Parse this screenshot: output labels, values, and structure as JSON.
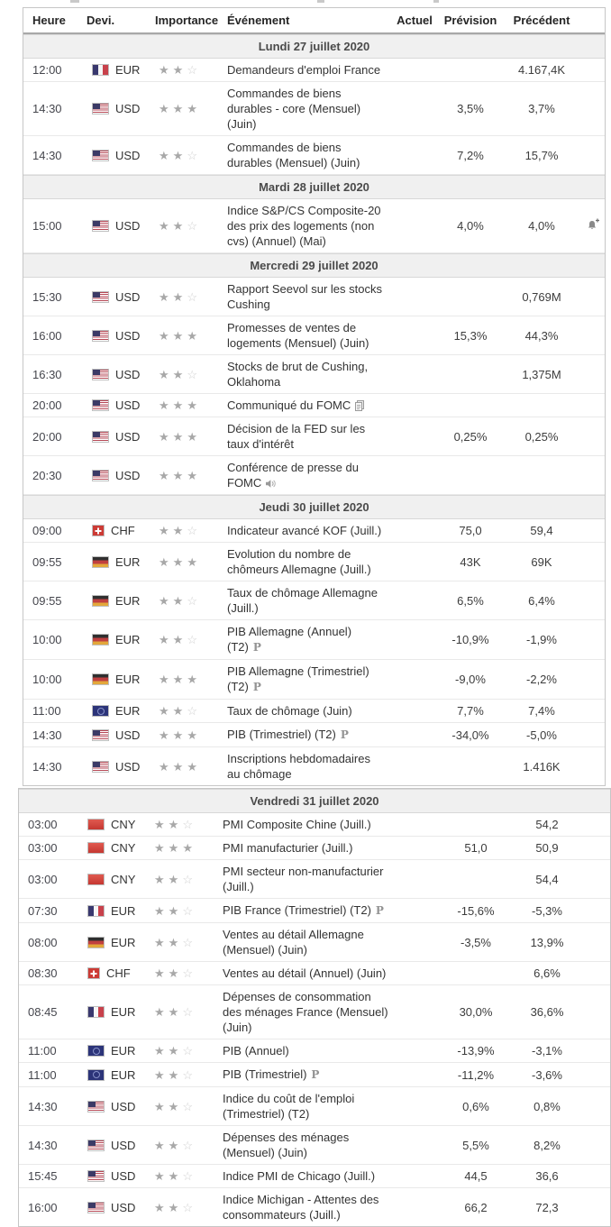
{
  "colors": {
    "accent_border": "#c6c6c6",
    "day_header_bg": "#f0f0f0",
    "star_on": "#a8a8a8",
    "star_off": "#cfcfcf",
    "text": "#333333"
  },
  "icons": {
    "alert": "bell-plus-icon",
    "report": "report-document-icon",
    "speaker": "speaker-icon",
    "preliminary": "preliminary-p-icon",
    "star": "star-icon"
  },
  "table": {
    "columns": {
      "heure": "Heure",
      "devi": "Devi.",
      "importance": "Importance",
      "evenement": "Événement",
      "actuel": "Actuel",
      "prevision": "Prévision",
      "precedent": "Précédent"
    },
    "days": [
      {
        "label": "Lundi 27 juillet 2020",
        "wide": false,
        "rows": [
          {
            "time": "12:00",
            "flag": "fr",
            "currency": "EUR",
            "importance": 2,
            "event": "Demandeurs d'emploi France",
            "actual": "",
            "forecast": "",
            "previous": "4.167,4K"
          },
          {
            "time": "14:30",
            "flag": "us",
            "currency": "USD",
            "importance": 3,
            "event": "Commandes de biens durables - core (Mensuel) (Juin)",
            "actual": "",
            "forecast": "3,5%",
            "previous": "3,7%"
          },
          {
            "time": "14:30",
            "flag": "us",
            "currency": "USD",
            "importance": 2,
            "event": "Commandes de biens durables (Mensuel) (Juin)",
            "actual": "",
            "forecast": "7,2%",
            "previous": "15,7%"
          }
        ]
      },
      {
        "label": "Mardi 28 juillet 2020",
        "wide": false,
        "rows": [
          {
            "time": "15:00",
            "flag": "us",
            "currency": "USD",
            "importance": 2,
            "event": "Indice S&P/CS Composite-20 des prix des logements (non cvs) (Annuel) (Mai)",
            "actual": "",
            "forecast": "4,0%",
            "previous": "4,0%",
            "alert": true
          }
        ]
      },
      {
        "label": "Mercredi 29 juillet 2020",
        "wide": false,
        "rows": [
          {
            "time": "15:30",
            "flag": "us",
            "currency": "USD",
            "importance": 2,
            "event": "Rapport Seevol sur les stocks Cushing",
            "actual": "",
            "forecast": "",
            "previous": "0,769M"
          },
          {
            "time": "16:00",
            "flag": "us",
            "currency": "USD",
            "importance": 3,
            "event": "Promesses de ventes de logements (Mensuel) (Juin)",
            "actual": "",
            "forecast": "15,3%",
            "previous": "44,3%"
          },
          {
            "time": "16:30",
            "flag": "us",
            "currency": "USD",
            "importance": 2,
            "event": "Stocks de brut de Cushing, Oklahoma",
            "actual": "",
            "forecast": "",
            "previous": "1,375M"
          },
          {
            "time": "20:00",
            "flag": "us",
            "currency": "USD",
            "importance": 3,
            "event": "Communiqué du FOMC",
            "icon": "report",
            "actual": "",
            "forecast": "",
            "previous": ""
          },
          {
            "time": "20:00",
            "flag": "us",
            "currency": "USD",
            "importance": 3,
            "event": "Décision de la FED sur les taux d'intérêt",
            "actual": "",
            "forecast": "0,25%",
            "previous": "0,25%"
          },
          {
            "time": "20:30",
            "flag": "us",
            "currency": "USD",
            "importance": 3,
            "event": "Conférence de presse du FOMC",
            "icon": "speaker",
            "actual": "",
            "forecast": "",
            "previous": ""
          }
        ]
      },
      {
        "label": "Jeudi 30 juillet 2020",
        "wide": false,
        "rows": [
          {
            "time": "09:00",
            "flag": "ch",
            "currency": "CHF",
            "importance": 2,
            "event": "Indicateur avancé KOF (Juill.)",
            "actual": "",
            "forecast": "75,0",
            "previous": "59,4"
          },
          {
            "time": "09:55",
            "flag": "de",
            "currency": "EUR",
            "importance": 3,
            "event": "Evolution du nombre de chômeurs Allemagne (Juill.)",
            "actual": "",
            "forecast": "43K",
            "previous": "69K"
          },
          {
            "time": "09:55",
            "flag": "de",
            "currency": "EUR",
            "importance": 2,
            "event": "Taux de chômage Allemagne (Juill.)",
            "actual": "",
            "forecast": "6,5%",
            "previous": "6,4%"
          },
          {
            "time": "10:00",
            "flag": "de",
            "currency": "EUR",
            "importance": 2,
            "event": "PIB Allemagne (Annuel) (T2)",
            "prelim": true,
            "actual": "",
            "forecast": "-10,9%",
            "previous": "-1,9%"
          },
          {
            "time": "10:00",
            "flag": "de",
            "currency": "EUR",
            "importance": 3,
            "event": "PIB Allemagne (Trimestriel) (T2)",
            "prelim": true,
            "actual": "",
            "forecast": "-9,0%",
            "previous": "-2,2%"
          },
          {
            "time": "11:00",
            "flag": "eu",
            "currency": "EUR",
            "importance": 2,
            "event": "Taux de chômage (Juin)",
            "actual": "",
            "forecast": "7,7%",
            "previous": "7,4%"
          },
          {
            "time": "14:30",
            "flag": "us",
            "currency": "USD",
            "importance": 3,
            "event": "PIB (Trimestriel) (T2)",
            "prelim": true,
            "actual": "",
            "forecast": "-34,0%",
            "previous": "-5,0%"
          },
          {
            "time": "14:30",
            "flag": "us",
            "currency": "USD",
            "importance": 3,
            "event": "Inscriptions hebdomadaires au chômage",
            "actual": "",
            "forecast": "",
            "previous": "1.416K"
          }
        ]
      },
      {
        "label": "Vendredi 31 juillet 2020",
        "wide": true,
        "rows": [
          {
            "time": "03:00",
            "flag": "cn",
            "currency": "CNY",
            "importance": 2,
            "event": "PMI Composite Chine (Juill.)",
            "actual": "",
            "forecast": "",
            "previous": "54,2"
          },
          {
            "time": "03:00",
            "flag": "cn",
            "currency": "CNY",
            "importance": 3,
            "event": "PMI manufacturier (Juill.)",
            "actual": "",
            "forecast": "51,0",
            "previous": "50,9"
          },
          {
            "time": "03:00",
            "flag": "cn",
            "currency": "CNY",
            "importance": 2,
            "event": "PMI secteur non-manufacturier (Juill.)",
            "actual": "",
            "forecast": "",
            "previous": "54,4"
          },
          {
            "time": "07:30",
            "flag": "fr",
            "currency": "EUR",
            "importance": 2,
            "event": "PIB France (Trimestriel) (T2)",
            "prelim": true,
            "actual": "",
            "forecast": "-15,6%",
            "previous": "-5,3%"
          },
          {
            "time": "08:00",
            "flag": "de",
            "currency": "EUR",
            "importance": 2,
            "event": "Ventes au détail Allemagne (Mensuel) (Juin)",
            "actual": "",
            "forecast": "-3,5%",
            "previous": "13,9%"
          },
          {
            "time": "08:30",
            "flag": "ch",
            "currency": "CHF",
            "importance": 2,
            "event": "Ventes au détail (Annuel) (Juin)",
            "actual": "",
            "forecast": "",
            "previous": "6,6%"
          },
          {
            "time": "08:45",
            "flag": "fr",
            "currency": "EUR",
            "importance": 2,
            "event": "Dépenses de consommation des ménages France (Mensuel) (Juin)",
            "actual": "",
            "forecast": "30,0%",
            "previous": "36,6%"
          },
          {
            "time": "11:00",
            "flag": "eu",
            "currency": "EUR",
            "importance": 2,
            "event": "PIB (Annuel)",
            "actual": "",
            "forecast": "-13,9%",
            "previous": "-3,1%"
          },
          {
            "time": "11:00",
            "flag": "eu",
            "currency": "EUR",
            "importance": 2,
            "event": "PIB (Trimestriel)",
            "prelim": true,
            "actual": "",
            "forecast": "-11,2%",
            "previous": "-3,6%"
          },
          {
            "time": "14:30",
            "flag": "us",
            "currency": "USD",
            "importance": 2,
            "event": "Indice du coût de l'emploi (Trimestriel) (T2)",
            "actual": "",
            "forecast": "0,6%",
            "previous": "0,8%"
          },
          {
            "time": "14:30",
            "flag": "us",
            "currency": "USD",
            "importance": 2,
            "event": "Dépenses des ménages (Mensuel) (Juin)",
            "actual": "",
            "forecast": "5,5%",
            "previous": "8,2%"
          },
          {
            "time": "15:45",
            "flag": "us",
            "currency": "USD",
            "importance": 2,
            "event": "Indice PMI de Chicago (Juill.)",
            "actual": "",
            "forecast": "44,5",
            "previous": "36,6"
          },
          {
            "time": "16:00",
            "flag": "us",
            "currency": "USD",
            "importance": 2,
            "event": "Indice Michigan - Attentes des consommateurs (Juill.)",
            "actual": "",
            "forecast": "66,2",
            "previous": "72,3"
          }
        ]
      }
    ]
  }
}
